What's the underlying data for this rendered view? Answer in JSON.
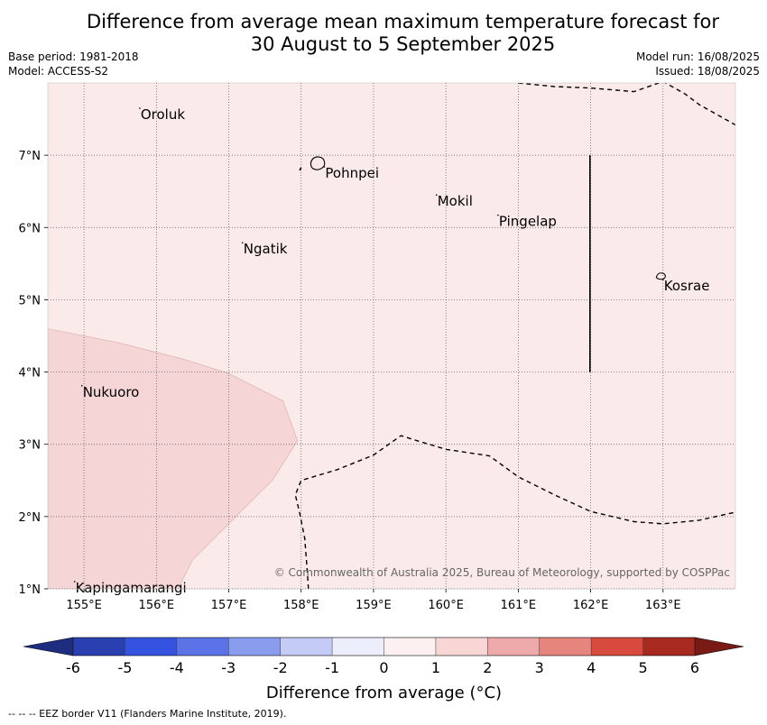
{
  "title": {
    "line1": "Difference from average mean maximum temperature forecast for",
    "line2": "30 August to 5 September 2025"
  },
  "meta_left": {
    "base_period": "Base period: 1981-2018",
    "model": "Model: ACCESS-S2"
  },
  "meta_right": {
    "model_run": "Model run: 16/08/2025",
    "issued": "Issued: 18/08/2025"
  },
  "map": {
    "lon_range": [
      154.5,
      164.0
    ],
    "lat_range": [
      1.0,
      8.0
    ],
    "lon_ticks": [
      {
        "value": 155,
        "label": "155°E"
      },
      {
        "value": 156,
        "label": "156°E"
      },
      {
        "value": 157,
        "label": "157°E"
      },
      {
        "value": 158,
        "label": "158°E"
      },
      {
        "value": 159,
        "label": "159°E"
      },
      {
        "value": 160,
        "label": "160°E"
      },
      {
        "value": 161,
        "label": "161°E"
      },
      {
        "value": 162,
        "label": "162°E"
      },
      {
        "value": 163,
        "label": "163°E"
      }
    ],
    "lat_ticks": [
      {
        "value": 1,
        "label": "1°N"
      },
      {
        "value": 2,
        "label": "2°N"
      },
      {
        "value": 3,
        "label": "3°N"
      },
      {
        "value": 4,
        "label": "4°N"
      },
      {
        "value": 5,
        "label": "5°N"
      },
      {
        "value": 6,
        "label": "6°N"
      },
      {
        "value": 7,
        "label": "7°N"
      }
    ],
    "background_color": "#fbeaea",
    "anomaly_region_color": "#f5d5d5",
    "anomaly_region": {
      "band": "1 to 2",
      "polygon": [
        [
          154.5,
          4.6
        ],
        [
          155.5,
          4.4
        ],
        [
          156.4,
          4.17
        ],
        [
          157.0,
          3.98
        ],
        [
          157.75,
          3.6
        ],
        [
          157.95,
          3.05
        ],
        [
          157.6,
          2.5
        ],
        [
          157.1,
          2.0
        ],
        [
          156.8,
          1.7
        ],
        [
          156.5,
          1.4
        ],
        [
          156.3,
          1.0
        ],
        [
          154.5,
          1.0
        ]
      ]
    },
    "eez_lines": [
      [
        [
          161.0,
          8.0
        ],
        [
          161.5,
          7.95
        ],
        [
          162.0,
          7.93
        ],
        [
          162.6,
          7.88
        ],
        [
          163.0,
          8.02
        ],
        [
          163.3,
          7.85
        ],
        [
          163.5,
          7.7
        ],
        [
          164.0,
          7.42
        ]
      ],
      [
        [
          158.1,
          1.0
        ],
        [
          158.08,
          1.3
        ],
        [
          158.05,
          1.7
        ],
        [
          157.98,
          2.05
        ],
        [
          157.92,
          2.3
        ],
        [
          158.0,
          2.5
        ],
        [
          158.5,
          2.65
        ],
        [
          159.0,
          2.85
        ],
        [
          159.38,
          3.12
        ],
        [
          159.6,
          3.05
        ],
        [
          160.0,
          2.93
        ],
        [
          160.6,
          2.84
        ],
        [
          161.0,
          2.55
        ],
        [
          161.5,
          2.3
        ],
        [
          162.0,
          2.07
        ],
        [
          162.6,
          1.93
        ],
        [
          163.0,
          1.9
        ],
        [
          163.5,
          1.95
        ],
        [
          164.0,
          2.06
        ]
      ]
    ],
    "eez_segments": [
      [
        [
          157.98,
          6.79
        ],
        [
          158.0,
          6.83
        ]
      ],
      [
        [
          161.99,
          7.0
        ],
        [
          161.99,
          4.0
        ]
      ]
    ],
    "places": [
      {
        "name": "Oroluk",
        "lon": 155.77,
        "lat": 7.65
      },
      {
        "name": "Pohnpei",
        "lon": 158.32,
        "lat": 6.84
      },
      {
        "name": "Mokil",
        "lon": 159.87,
        "lat": 6.45
      },
      {
        "name": "Pingelap",
        "lon": 160.72,
        "lat": 6.17
      },
      {
        "name": "Ngatik",
        "lon": 157.19,
        "lat": 5.79
      },
      {
        "name": "Kosrae",
        "lon": 163.0,
        "lat": 5.28
      },
      {
        "name": "Nukuoro",
        "lon": 154.97,
        "lat": 3.81
      },
      {
        "name": "Kapingamarangi",
        "lon": 154.87,
        "lat": 1.1
      }
    ],
    "copyright": "© Commonwealth of Australia 2025, Bureau of Meteorology, supported by COSPPac"
  },
  "colorbar": {
    "label": "Difference from average (°C)",
    "bounds": [
      -6,
      -5,
      -4,
      -3,
      -2,
      -1,
      0,
      1,
      2,
      3,
      4,
      5,
      6
    ],
    "tick_labels": [
      "-6",
      "-5",
      "-4",
      "-3",
      "-2",
      "-1",
      "0",
      "1",
      "2",
      "3",
      "4",
      "5",
      "6"
    ],
    "colors": [
      "#2b40b0",
      "#3353e0",
      "#5b73e6",
      "#8a9ced",
      "#c4cbf5",
      "#eceefc",
      "#fdf0f0",
      "#f8d6d6",
      "#eeaaaa",
      "#e6847e",
      "#d84a3e",
      "#a8291f"
    ],
    "under_color": "#1e2d80",
    "over_color": "#7a1a15"
  },
  "eez_note": "--  --  -- EEZ border V11 (Flanders Marine Institute, 2019)."
}
